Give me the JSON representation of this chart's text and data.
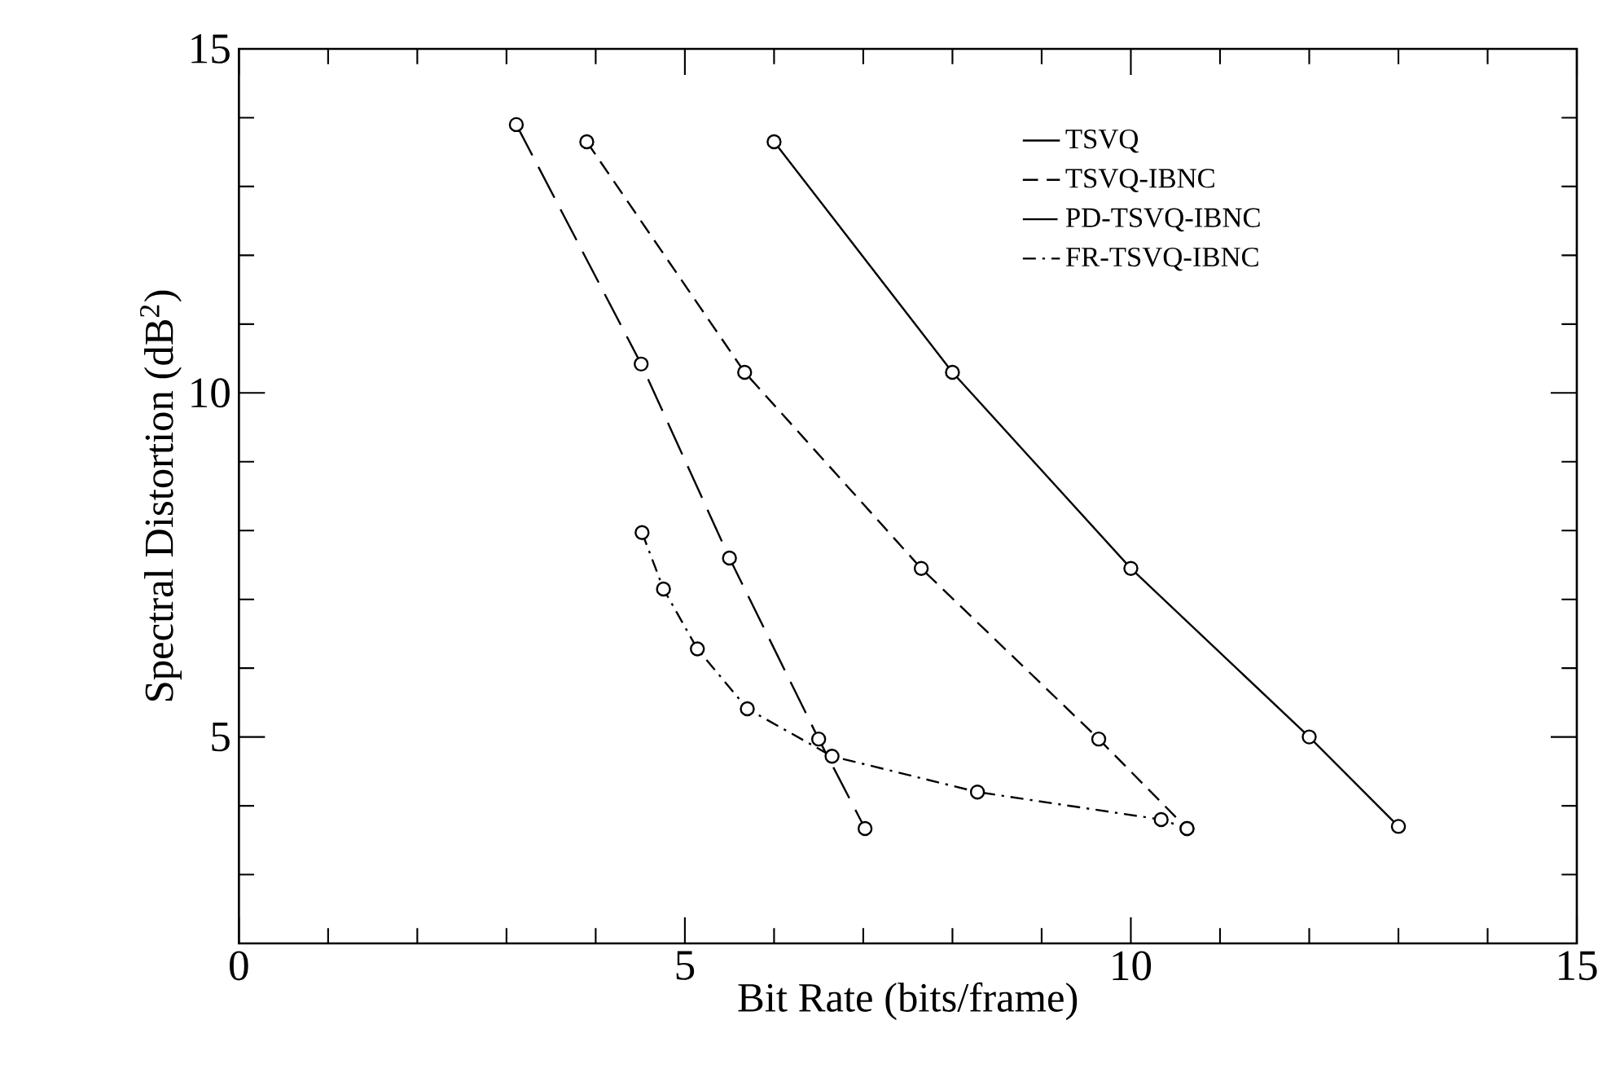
{
  "chart_data": {
    "type": "line",
    "xlabel": "Bit Rate (bits/frame)",
    "ylabel": "Spectral Distortion (dB$^{2}$)",
    "xlim": [
      0,
      15
    ],
    "ylim": [
      2,
      15
    ],
    "xticks": [
      0,
      {
        "value": 1,
        "label": null
      },
      {
        "value": 2,
        "label": null
      },
      {
        "value": 3,
        "label": null
      },
      {
        "value": 4,
        "label": null
      },
      5,
      {
        "value": 6,
        "label": null
      },
      {
        "value": 7,
        "label": null
      },
      {
        "value": 8,
        "label": null
      },
      {
        "value": 9,
        "label": null
      },
      10,
      {
        "value": 11,
        "label": null
      },
      {
        "value": 12,
        "label": null
      },
      {
        "value": 13,
        "label": null
      },
      {
        "value": 14,
        "label": null
      },
      15
    ],
    "yticks": [
      {
        "value": 2,
        "label": null
      },
      {
        "value": 3,
        "label": null
      },
      {
        "value": 4,
        "label": null
      },
      5,
      {
        "value": 6,
        "label": null
      },
      {
        "value": 7,
        "label": null
      },
      {
        "value": 8,
        "label": null
      },
      {
        "value": 9,
        "label": null
      },
      10,
      {
        "value": 11,
        "label": null
      },
      {
        "value": 12,
        "label": null
      },
      {
        "value": 13,
        "label": null
      },
      {
        "value": 14,
        "label": null
      },
      15
    ],
    "marker": "circle",
    "grid": false,
    "legend": "top right",
    "series": [
      {
        "name": "TSVQ",
        "color": "#000000",
        "line_style": "solid",
        "x": [
          6.0,
          8.0,
          10.0,
          12.0,
          13.0
        ],
        "values": [
          13.65,
          10.3,
          7.45,
          5.0,
          3.7
        ]
      },
      {
        "name": "TSVQ-IBNC",
        "color": "#000000",
        "line_style": "dashed",
        "x": [
          3.9,
          5.67,
          7.65,
          9.64,
          10.63
        ],
        "values": [
          13.65,
          10.3,
          7.45,
          4.97,
          3.67
        ]
      },
      {
        "name": "PD-TSVQ-IBNC",
        "color": "#000000",
        "line_style": "long dashed",
        "x": [
          3.11,
          4.51,
          5.5,
          6.5,
          7.02
        ],
        "values": [
          13.9,
          10.42,
          7.6,
          4.97,
          3.67
        ]
      },
      {
        "name": "FR-TSVQ-IBNC",
        "color": "#000000",
        "line_style": "dash dot",
        "x": [
          4.52,
          4.76,
          5.14,
          5.7,
          6.65,
          8.28,
          10.34,
          10.63
        ],
        "values": [
          7.97,
          7.15,
          6.28,
          5.41,
          4.72,
          4.2,
          3.8,
          3.67
        ]
      }
    ]
  }
}
